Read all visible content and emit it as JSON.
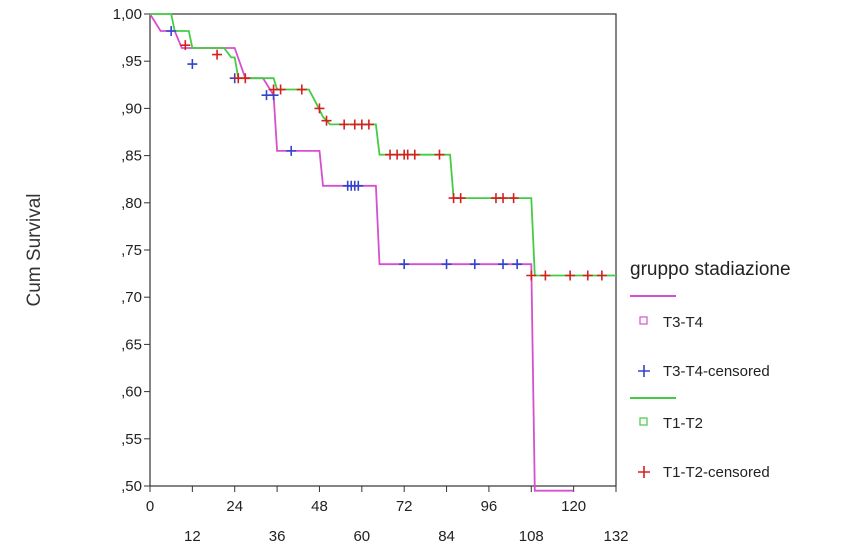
{
  "chart_data": {
    "type": "line",
    "title": "",
    "xlabel": "",
    "ylabel": "Cum Survival",
    "xlim": [
      0,
      132
    ],
    "ylim": [
      0.5,
      1.0
    ],
    "x_ticks_top": [
      "0",
      "24",
      "48",
      "72",
      "96",
      "120"
    ],
    "x_ticks_bottom": [
      "12",
      "36",
      "60",
      "84",
      "108",
      "132"
    ],
    "y_ticks": [
      "1,00",
      ",95",
      ",90",
      ",85",
      ",80",
      ",75",
      ",70",
      ",65",
      ",60",
      ",55",
      ",50"
    ],
    "grid": false,
    "legend_position": "right",
    "legend_title": "gruppo stadiazione",
    "series": [
      {
        "name": "T3-T4",
        "color": "#d64fd0",
        "step_points": [
          [
            0,
            1.0
          ],
          [
            3,
            0.982
          ],
          [
            7,
            0.982
          ],
          [
            9,
            0.964
          ],
          [
            24,
            0.964
          ],
          [
            27,
            0.932
          ],
          [
            32,
            0.932
          ],
          [
            35,
            0.914
          ],
          [
            36,
            0.855
          ],
          [
            48,
            0.855
          ],
          [
            49,
            0.818
          ],
          [
            64,
            0.818
          ],
          [
            65,
            0.735
          ],
          [
            108,
            0.735
          ],
          [
            109,
            0.495
          ],
          [
            120,
            0.495
          ]
        ],
        "censored_name": "T3-T4-censored",
        "censored_color": "#3344cc",
        "censored": [
          [
            6,
            0.982
          ],
          [
            12,
            0.947
          ],
          [
            24,
            0.932
          ],
          [
            33,
            0.914
          ],
          [
            35,
            0.914
          ],
          [
            40,
            0.855
          ],
          [
            56,
            0.818
          ],
          [
            57,
            0.818
          ],
          [
            58,
            0.818
          ],
          [
            59,
            0.818
          ],
          [
            72,
            0.735
          ],
          [
            84,
            0.735
          ],
          [
            92,
            0.735
          ],
          [
            100,
            0.735
          ],
          [
            104,
            0.735
          ]
        ]
      },
      {
        "name": "T1-T2",
        "color": "#44cc44",
        "step_points": [
          [
            0,
            1.0
          ],
          [
            6,
            1.0
          ],
          [
            7,
            0.982
          ],
          [
            11,
            0.982
          ],
          [
            12,
            0.964
          ],
          [
            21,
            0.964
          ],
          [
            23,
            0.954
          ],
          [
            24,
            0.954
          ],
          [
            25,
            0.932
          ],
          [
            35,
            0.932
          ],
          [
            36,
            0.92
          ],
          [
            45,
            0.92
          ],
          [
            47,
            0.906
          ],
          [
            49,
            0.891
          ],
          [
            51,
            0.883
          ],
          [
            64,
            0.883
          ],
          [
            65,
            0.851
          ],
          [
            85,
            0.851
          ],
          [
            86,
            0.805
          ],
          [
            108,
            0.805
          ],
          [
            109,
            0.723
          ],
          [
            132,
            0.723
          ]
        ],
        "censored_name": "T1-T2-censored",
        "censored_color": "#d62020",
        "censored": [
          [
            10,
            0.967
          ],
          [
            19,
            0.957
          ],
          [
            25,
            0.932
          ],
          [
            27,
            0.932
          ],
          [
            35,
            0.92
          ],
          [
            37,
            0.92
          ],
          [
            43,
            0.92
          ],
          [
            48,
            0.9
          ],
          [
            50,
            0.887
          ],
          [
            55,
            0.883
          ],
          [
            58,
            0.883
          ],
          [
            60,
            0.883
          ],
          [
            62,
            0.883
          ],
          [
            68,
            0.851
          ],
          [
            70,
            0.851
          ],
          [
            72,
            0.851
          ],
          [
            73,
            0.851
          ],
          [
            75,
            0.851
          ],
          [
            82,
            0.851
          ],
          [
            86,
            0.805
          ],
          [
            88,
            0.805
          ],
          [
            98,
            0.805
          ],
          [
            100,
            0.805
          ],
          [
            103,
            0.805
          ],
          [
            108,
            0.723
          ],
          [
            112,
            0.723
          ],
          [
            119,
            0.723
          ],
          [
            124,
            0.723
          ],
          [
            128,
            0.723
          ]
        ]
      }
    ]
  }
}
